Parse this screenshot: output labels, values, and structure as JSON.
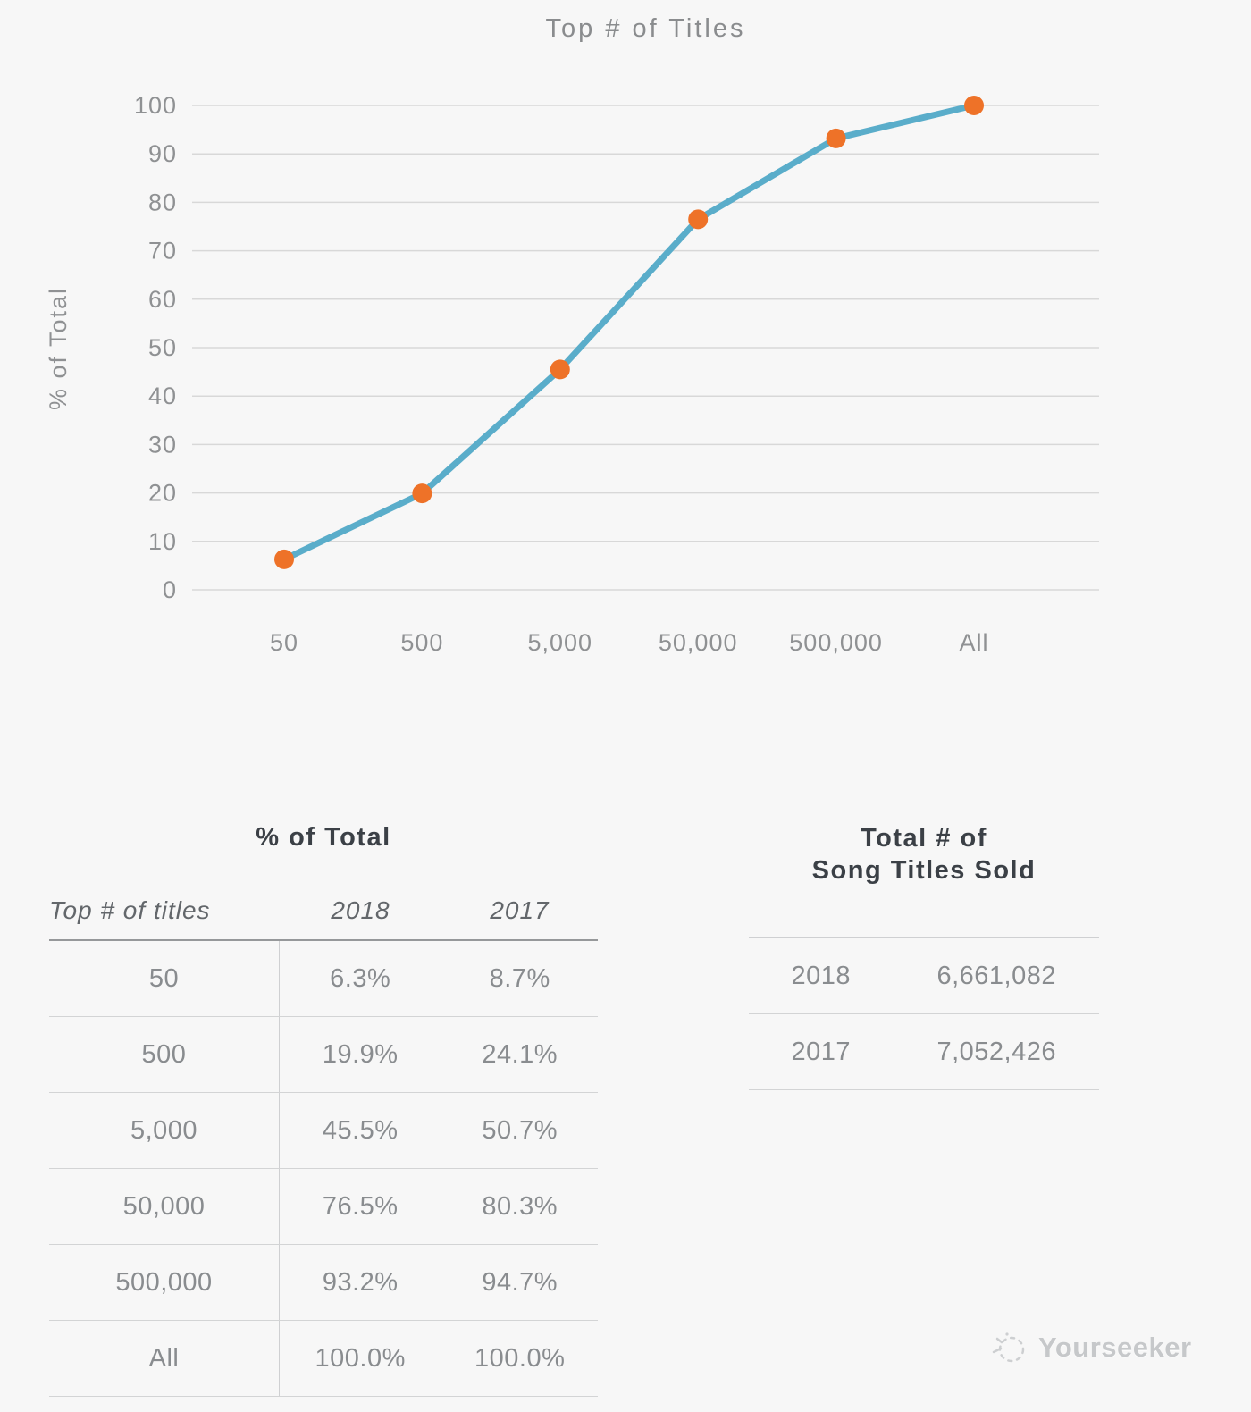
{
  "chart_data": {
    "type": "line",
    "title": "Top # of Titles",
    "xlabel": "",
    "ylabel": "% of Total",
    "categories": [
      "50",
      "500",
      "5,000",
      "50,000",
      "500,000",
      "All"
    ],
    "series": [
      {
        "name": "2018",
        "values": [
          6.3,
          19.9,
          45.5,
          76.5,
          93.2,
          100.0
        ]
      }
    ],
    "ylim": [
      0,
      100
    ],
    "ytick_step": 10,
    "grid": true,
    "legend_position": "none",
    "line_color": "#5aadca",
    "marker_color": "#ee7228",
    "grid_color": "#d8d8d8",
    "axis_text_color": "#8f9193"
  },
  "pct_table": {
    "title": "% of Total",
    "columns": [
      "Top # of titles",
      "2018",
      "2017"
    ],
    "rows": [
      [
        "50",
        "6.3%",
        "8.7%"
      ],
      [
        "500",
        "19.9%",
        "24.1%"
      ],
      [
        "5,000",
        "45.5%",
        "50.7%"
      ],
      [
        "50,000",
        "76.5%",
        "80.3%"
      ],
      [
        "500,000",
        "93.2%",
        "94.7%"
      ],
      [
        "All",
        "100.0%",
        "100.0%"
      ]
    ]
  },
  "totals_table": {
    "title_line1": "Total # of",
    "title_line2": "Song Titles Sold",
    "rows": [
      [
        "2018",
        "6,661,082"
      ],
      [
        "2017",
        "7,052,426"
      ]
    ]
  },
  "watermark": {
    "text": "Yourseeker"
  }
}
